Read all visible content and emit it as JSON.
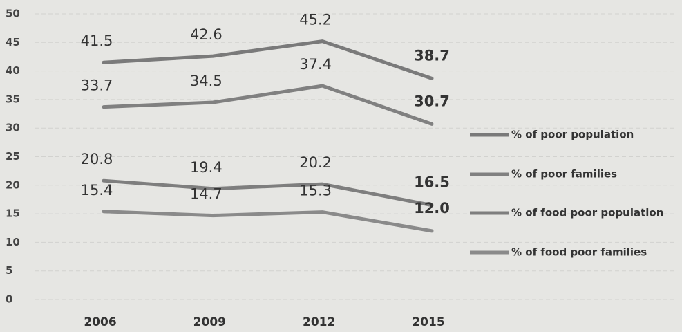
{
  "chart_data": {
    "type": "line",
    "categories": [
      "2006",
      "2009",
      "2012",
      "2015"
    ],
    "series": [
      {
        "name": "% of poor population",
        "color": "#7a7a7a",
        "values": [
          41.5,
          42.6,
          45.2,
          38.7
        ],
        "value_labels": [
          "41.5",
          "42.6",
          "45.2",
          "38.7"
        ]
      },
      {
        "name": "% of poor families",
        "color": "#808080",
        "values": [
          33.7,
          34.5,
          37.4,
          30.7
        ],
        "value_labels": [
          "33.7",
          "34.5",
          "37.4",
          "30.7"
        ]
      },
      {
        "name": "% of food poor population",
        "color": "#7e7e7e",
        "values": [
          20.8,
          19.4,
          20.2,
          16.5
        ],
        "value_labels": [
          "20.8",
          "19.4",
          "20.2",
          "16.5"
        ]
      },
      {
        "name": "% of food poor families",
        "color": "#8a8a8a",
        "values": [
          15.4,
          14.7,
          15.3,
          12.0
        ],
        "value_labels": [
          "15.4",
          "14.7",
          "15.3",
          "12.0"
        ]
      }
    ],
    "ylim": [
      0,
      50
    ],
    "yticks": [
      0,
      5,
      10,
      15,
      20,
      25,
      30,
      35,
      40,
      45,
      50
    ],
    "grid": true,
    "legend": "right"
  }
}
